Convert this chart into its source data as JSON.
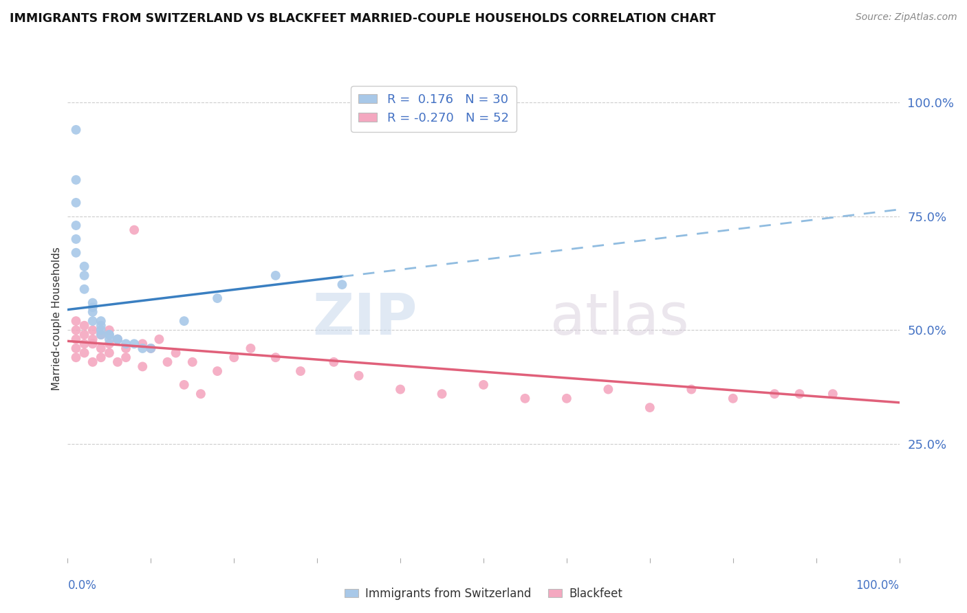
{
  "title": "IMMIGRANTS FROM SWITZERLAND VS BLACKFEET MARRIED-COUPLE HOUSEHOLDS CORRELATION CHART",
  "source": "Source: ZipAtlas.com",
  "ylabel": "Married-couple Households",
  "r_blue": 0.176,
  "n_blue": 30,
  "r_pink": -0.27,
  "n_pink": 52,
  "blue_color": "#a8c8e8",
  "pink_color": "#f4a8c0",
  "blue_line_color": "#3a7fc1",
  "pink_line_color": "#e0607a",
  "dashed_line_color": "#90bce0",
  "watermark_zip": "ZIP",
  "watermark_atlas": "atlas",
  "ytick_labels": [
    "25.0%",
    "50.0%",
    "75.0%",
    "100.0%"
  ],
  "ytick_values": [
    0.25,
    0.5,
    0.75,
    1.0
  ],
  "blue_scatter_x": [
    0.01,
    0.01,
    0.01,
    0.01,
    0.01,
    0.01,
    0.02,
    0.02,
    0.02,
    0.03,
    0.03,
    0.03,
    0.03,
    0.04,
    0.04,
    0.04,
    0.04,
    0.05,
    0.05,
    0.05,
    0.06,
    0.06,
    0.07,
    0.08,
    0.09,
    0.1,
    0.14,
    0.18,
    0.25,
    0.33
  ],
  "blue_scatter_y": [
    0.94,
    0.83,
    0.78,
    0.73,
    0.7,
    0.67,
    0.64,
    0.62,
    0.59,
    0.56,
    0.55,
    0.54,
    0.52,
    0.52,
    0.51,
    0.5,
    0.49,
    0.49,
    0.49,
    0.48,
    0.48,
    0.48,
    0.47,
    0.47,
    0.46,
    0.46,
    0.52,
    0.57,
    0.62,
    0.6
  ],
  "pink_scatter_x": [
    0.01,
    0.01,
    0.01,
    0.01,
    0.01,
    0.02,
    0.02,
    0.02,
    0.02,
    0.03,
    0.03,
    0.03,
    0.03,
    0.04,
    0.04,
    0.04,
    0.05,
    0.05,
    0.05,
    0.06,
    0.06,
    0.07,
    0.07,
    0.08,
    0.09,
    0.09,
    0.1,
    0.11,
    0.12,
    0.13,
    0.14,
    0.15,
    0.16,
    0.18,
    0.2,
    0.22,
    0.25,
    0.28,
    0.32,
    0.35,
    0.4,
    0.45,
    0.5,
    0.55,
    0.6,
    0.65,
    0.7,
    0.75,
    0.8,
    0.85,
    0.88,
    0.92
  ],
  "pink_scatter_y": [
    0.48,
    0.46,
    0.5,
    0.52,
    0.44,
    0.47,
    0.49,
    0.51,
    0.45,
    0.5,
    0.48,
    0.47,
    0.43,
    0.46,
    0.49,
    0.44,
    0.47,
    0.45,
    0.5,
    0.48,
    0.43,
    0.46,
    0.44,
    0.72,
    0.47,
    0.42,
    0.46,
    0.48,
    0.43,
    0.45,
    0.38,
    0.43,
    0.36,
    0.41,
    0.44,
    0.46,
    0.44,
    0.41,
    0.43,
    0.4,
    0.37,
    0.36,
    0.38,
    0.35,
    0.35,
    0.37,
    0.33,
    0.37,
    0.35,
    0.36,
    0.36,
    0.36
  ],
  "blue_line_x0": 0.0,
  "blue_line_y0": 0.545,
  "blue_line_x_solid_end": 0.33,
  "blue_line_x_dashed_end": 1.0,
  "blue_line_slope": 0.22,
  "pink_line_x0": 0.0,
  "pink_line_y0": 0.476,
  "pink_line_slope": -0.135,
  "xlim": [
    0.0,
    1.0
  ],
  "ylim": [
    0.0,
    1.05
  ],
  "xtick_positions": [
    0.0,
    0.1,
    0.2,
    0.3,
    0.4,
    0.5,
    0.6,
    0.7,
    0.8,
    0.9,
    1.0
  ]
}
